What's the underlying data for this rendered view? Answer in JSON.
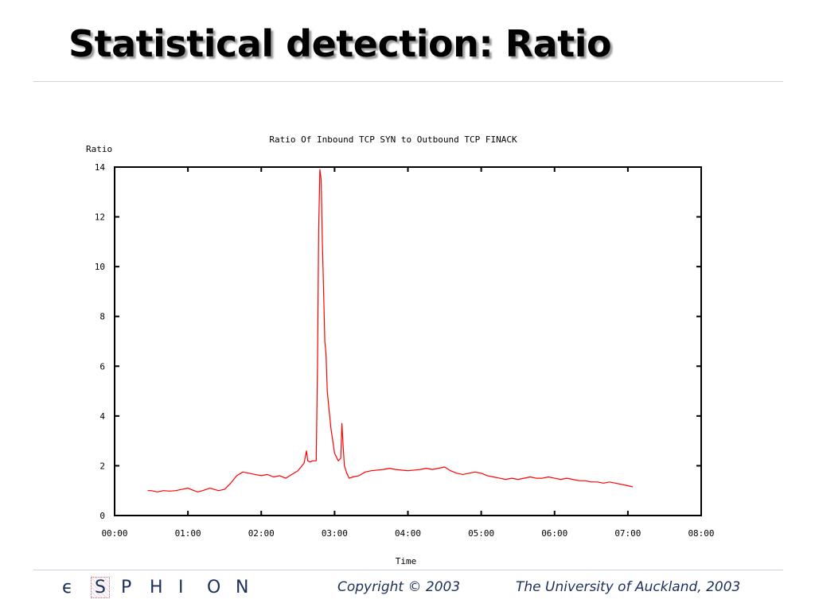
{
  "slide": {
    "title": "Statistical detection: Ratio"
  },
  "footer": {
    "logo_letters": [
      "ϵ",
      "S",
      "P",
      "H",
      "I",
      "O",
      "N"
    ],
    "copyright": "Copyright © 2003",
    "institution": "The University of Auckland, 2003"
  },
  "colors": {
    "line": "#ff0000",
    "title_shadow": "#9a9a9a",
    "footer_text": "#1c2f5c",
    "rule": "#cfd4e4"
  },
  "chart_data": {
    "type": "line",
    "title": "Ratio Of Inbound TCP SYN to Outbound TCP FINACK",
    "xlabel": "Time",
    "ylabel": "Ratio",
    "xlim": [
      "00:00",
      "08:00"
    ],
    "ylim": [
      0,
      14
    ],
    "x_ticks": [
      "00:00",
      "01:00",
      "02:00",
      "03:00",
      "04:00",
      "05:00",
      "06:00",
      "07:00",
      "08:00"
    ],
    "y_ticks": [
      "0",
      "2",
      "4",
      "6",
      "8",
      "10",
      "12",
      "14"
    ],
    "grid": false,
    "series": [
      {
        "color": "#ff0000",
        "x": [
          "00:27",
          "00:30",
          "00:35",
          "00:40",
          "00:45",
          "00:50",
          "00:55",
          "01:00",
          "01:05",
          "01:08",
          "01:12",
          "01:18",
          "01:25",
          "01:30",
          "01:35",
          "01:40",
          "01:45",
          "01:50",
          "01:55",
          "02:00",
          "02:05",
          "02:10",
          "02:15",
          "02:20",
          "02:25",
          "02:30",
          "02:35",
          "02:37",
          "02:38",
          "02:40",
          "02:42",
          "02:45",
          "02:46",
          "02:47",
          "02:48",
          "02:49",
          "02:50",
          "02:51",
          "02:52",
          "02:53",
          "02:54",
          "02:55",
          "02:57",
          "03:00",
          "03:03",
          "03:05",
          "03:06",
          "03:07",
          "03:08",
          "03:10",
          "03:12",
          "03:15",
          "03:20",
          "03:25",
          "03:30",
          "03:40",
          "03:45",
          "03:50",
          "04:00",
          "04:10",
          "04:15",
          "04:20",
          "04:25",
          "04:30",
          "04:35",
          "04:40",
          "04:45",
          "04:50",
          "04:55",
          "05:00",
          "05:05",
          "05:10",
          "05:15",
          "05:20",
          "05:25",
          "05:30",
          "05:35",
          "05:40",
          "05:45",
          "05:50",
          "05:55",
          "06:00",
          "06:05",
          "06:10",
          "06:15",
          "06:20",
          "06:25",
          "06:30",
          "06:35",
          "06:40",
          "06:45",
          "06:50",
          "06:55",
          "07:00",
          "07:04"
        ],
        "y": [
          1.0,
          1.0,
          0.95,
          1.0,
          0.98,
          1.0,
          1.05,
          1.1,
          1.0,
          0.95,
          1.0,
          1.1,
          1.0,
          1.05,
          1.3,
          1.6,
          1.75,
          1.7,
          1.65,
          1.6,
          1.65,
          1.55,
          1.6,
          1.5,
          1.65,
          1.8,
          2.1,
          2.6,
          2.2,
          2.15,
          2.2,
          2.2,
          6.0,
          11.5,
          13.9,
          13.5,
          11.0,
          9.0,
          7.0,
          6.5,
          5.0,
          4.5,
          3.5,
          2.5,
          2.2,
          2.3,
          3.7,
          2.8,
          2.0,
          1.7,
          1.5,
          1.55,
          1.6,
          1.75,
          1.8,
          1.85,
          1.9,
          1.85,
          1.8,
          1.85,
          1.9,
          1.85,
          1.9,
          1.95,
          1.8,
          1.7,
          1.65,
          1.7,
          1.75,
          1.7,
          1.6,
          1.55,
          1.5,
          1.45,
          1.5,
          1.45,
          1.5,
          1.55,
          1.5,
          1.5,
          1.55,
          1.5,
          1.45,
          1.5,
          1.45,
          1.4,
          1.4,
          1.35,
          1.35,
          1.3,
          1.35,
          1.3,
          1.25,
          1.2,
          1.15
        ]
      }
    ]
  }
}
